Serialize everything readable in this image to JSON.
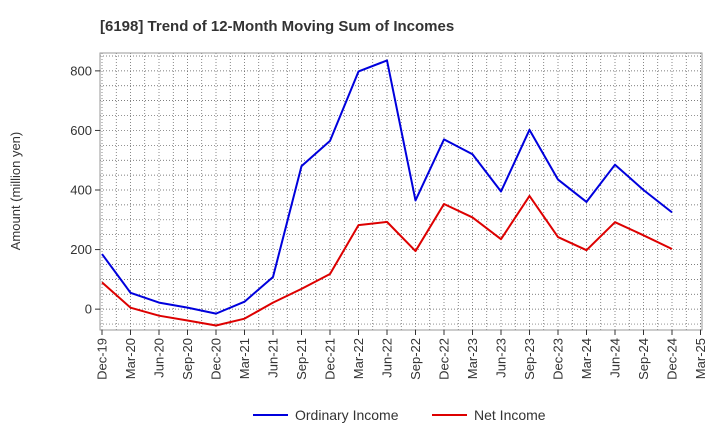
{
  "chart_data": {
    "type": "line",
    "title": "[6198]  Trend of 12-Month Moving Sum of Incomes",
    "xlabel": "",
    "ylabel": "Amount (million yen)",
    "ylim": [
      -70,
      860
    ],
    "yticks": [
      0,
      200,
      400,
      600,
      800
    ],
    "grid": true,
    "legend_position": "bottom",
    "categories": [
      "Dec-19",
      "Mar-20",
      "Jun-20",
      "Sep-20",
      "Dec-20",
      "Mar-21",
      "Jun-21",
      "Sep-21",
      "Dec-21",
      "Mar-22",
      "Jun-22",
      "Sep-22",
      "Dec-22",
      "Mar-23",
      "Jun-23",
      "Sep-23",
      "Dec-23",
      "Mar-24",
      "Jun-24",
      "Sep-24",
      "Dec-24",
      "Mar-25"
    ],
    "series": [
      {
        "name": "Ordinary Income",
        "color": "#0000dd",
        "values": [
          185,
          55,
          22,
          5,
          -15,
          25,
          108,
          480,
          565,
          798,
          835,
          365,
          570,
          520,
          395,
          602,
          435,
          360,
          485,
          400,
          325,
          null
        ]
      },
      {
        "name": "Net Income",
        "color": "#dd0000",
        "values": [
          90,
          5,
          -22,
          -38,
          -55,
          -32,
          22,
          68,
          118,
          282,
          293,
          195,
          353,
          308,
          235,
          380,
          242,
          198,
          292,
          248,
          202,
          null
        ]
      }
    ]
  }
}
